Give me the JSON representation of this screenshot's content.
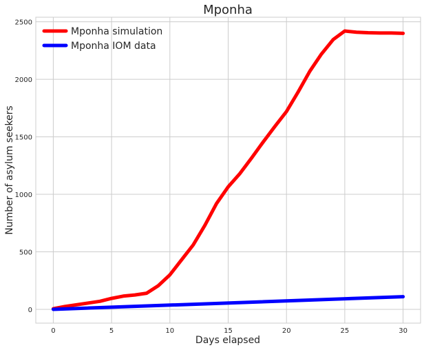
{
  "chart_data": {
    "type": "line",
    "title": "Mponha",
    "xlabel": "Days elapsed",
    "ylabel": "Number of asylum seekers",
    "xlim": [
      -1.5,
      31.5
    ],
    "ylim": [
      -120,
      2540
    ],
    "xticks": [
      0,
      5,
      10,
      15,
      20,
      25,
      30
    ],
    "yticks": [
      0,
      500,
      1000,
      1500,
      2000,
      2500
    ],
    "grid": true,
    "legend_position": "top-left",
    "series": [
      {
        "name": "Mponha simulation",
        "color": "#ff0000",
        "x": [
          0,
          1,
          2,
          3,
          4,
          5,
          6,
          7,
          8,
          9,
          10,
          11,
          12,
          13,
          14,
          15,
          16,
          17,
          18,
          19,
          20,
          21,
          22,
          23,
          24,
          25,
          26,
          27,
          28,
          29,
          30
        ],
        "y": [
          5,
          25,
          40,
          55,
          70,
          95,
          115,
          125,
          140,
          205,
          300,
          430,
          560,
          730,
          920,
          1065,
          1180,
          1315,
          1455,
          1590,
          1720,
          1890,
          2070,
          2220,
          2345,
          2420,
          2410,
          2405,
          2403,
          2403,
          2400
        ]
      },
      {
        "name": "Mponha IOM data",
        "color": "#0000ff",
        "x": [
          0,
          30
        ],
        "y": [
          0,
          110
        ]
      }
    ]
  }
}
